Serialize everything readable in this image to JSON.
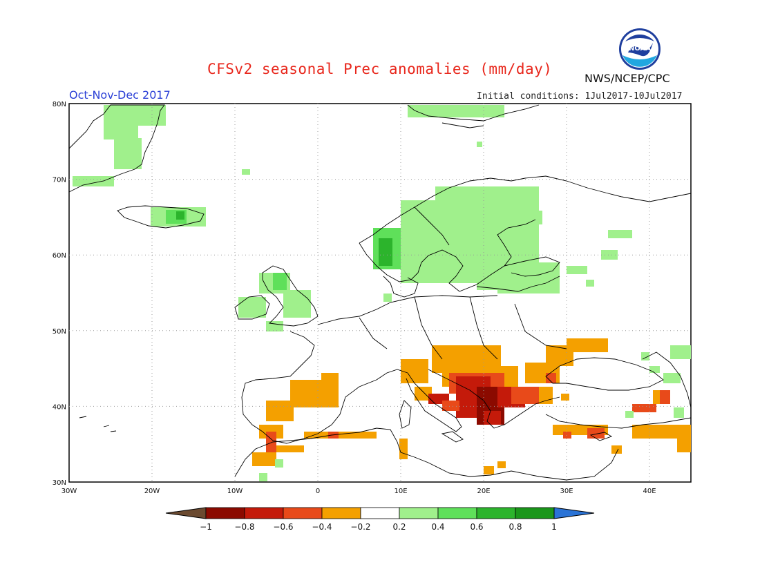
{
  "header": {
    "title": "CFSv2 seasonal Prec anomalies (mm/day)",
    "organization": "NWS/NCEP/CPC",
    "season": "Oct-Nov-Dec 2017",
    "initial_conditions": "Initial conditions: 1Jul2017-10Jul2017",
    "logo_text": "NOAA"
  },
  "map": {
    "lat_labels": [
      "80N",
      "70N",
      "60N",
      "50N",
      "40N",
      "30N"
    ],
    "lon_labels": [
      "30W",
      "20W",
      "10W",
      "0",
      "10E",
      "20E",
      "30E",
      "40E"
    ],
    "colors": {
      "dry_strong": "#8b0a00",
      "dry_mid": "#c41a0a",
      "dry": "#e84a1a",
      "dry_light": "#f4a000",
      "wet_light": "#a0f08c",
      "wet": "#5fe05a",
      "wet_mid": "#2cb42c",
      "wet_strong": "#1a961a",
      "land_outline": "#000000",
      "grid": "#999999"
    }
  },
  "colorbar": {
    "tick_labels": [
      "−1",
      "−0.8",
      "−0.6",
      "−0.4",
      "−0.2",
      "0.2",
      "0.4",
      "0.6",
      "0.8",
      "1"
    ],
    "low_extreme_color": "#6b4a30",
    "high_extreme_color": "#2a73d6",
    "bin_colors": [
      "#8b0a00",
      "#c41a0a",
      "#e84a1a",
      "#f4a000",
      "#ffffff",
      "#a0f08c",
      "#5fe05a",
      "#2cb42c",
      "#1a961a"
    ]
  }
}
